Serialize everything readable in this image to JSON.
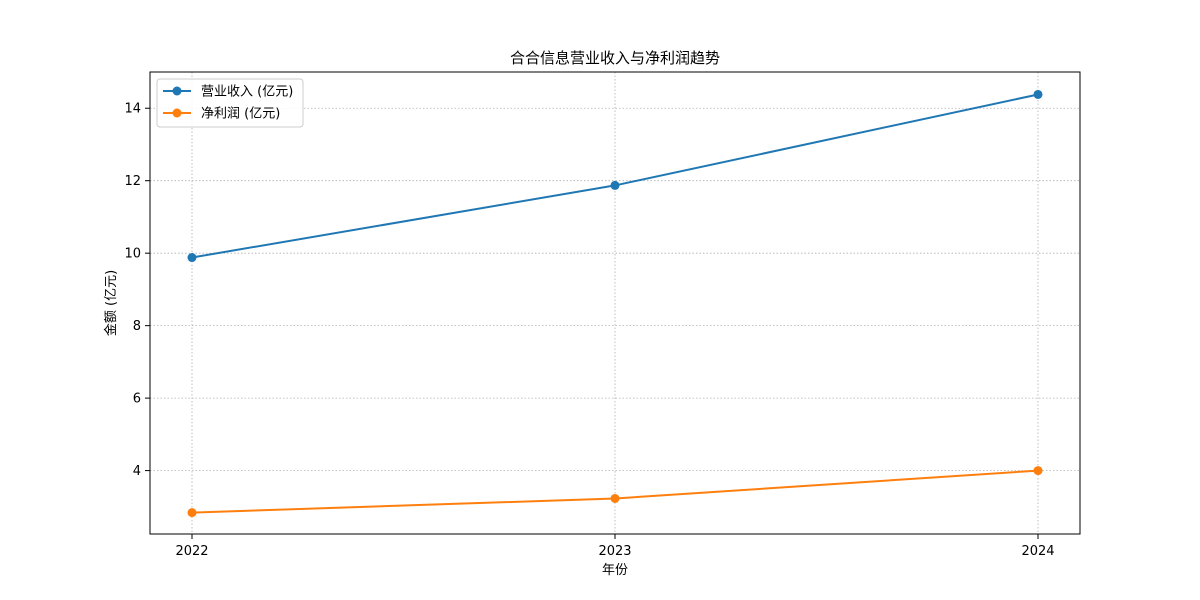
{
  "chart_data": {
    "type": "line",
    "title": "合合信息营业收入与净利润趋势",
    "xlabel": "年份",
    "ylabel": "金额 (亿元)",
    "categories": [
      "2022",
      "2023",
      "2024"
    ],
    "ylim": [
      2.25,
      15.0
    ],
    "yticks": [
      "4",
      "6",
      "8",
      "10",
      "12",
      "14"
    ],
    "grid": true,
    "legend_position": "top-left",
    "series": [
      {
        "name": "营业收入 (亿元)",
        "color": "#1f77b4",
        "values": [
          9.88,
          11.87,
          14.38
        ]
      },
      {
        "name": "净利润 (亿元)",
        "color": "#ff7f0e",
        "values": [
          2.84,
          3.23,
          4.0
        ]
      }
    ]
  }
}
